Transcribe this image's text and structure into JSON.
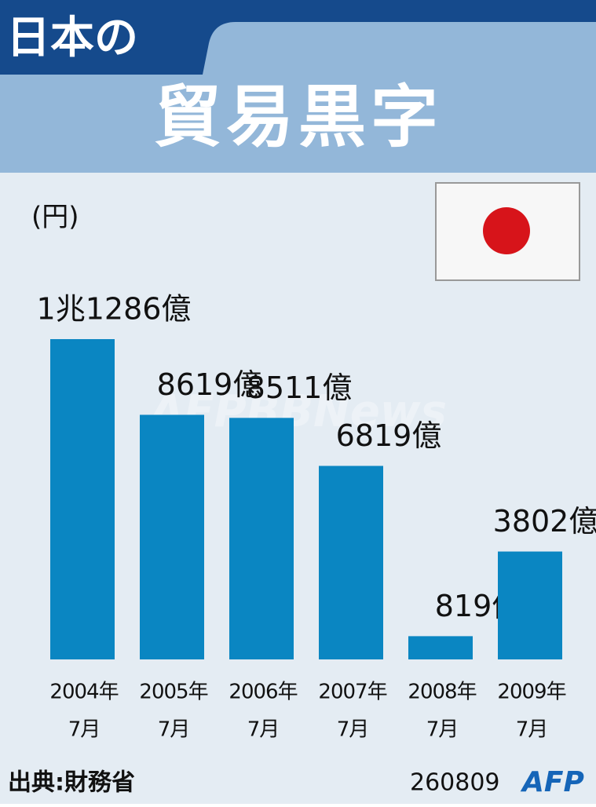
{
  "header": {
    "title": "日本の",
    "subtitle": "貿易黒字"
  },
  "chart_data": {
    "type": "bar",
    "unit_label": "(円)",
    "categories": [
      [
        "2004年",
        "7月"
      ],
      [
        "2005年",
        "7月"
      ],
      [
        "2006年",
        "7月"
      ],
      [
        "2007年",
        "7月"
      ],
      [
        "2008年",
        "7月"
      ],
      [
        "2009年",
        "7月"
      ]
    ],
    "values": [
      11286,
      8619,
      8511,
      6819,
      819,
      3802
    ],
    "value_labels": [
      "1兆1286億",
      "8619億",
      "8511億",
      "6819億",
      "819億",
      "3802億"
    ],
    "color": "#0a86c2"
  },
  "footer": {
    "source": "出典:財務省",
    "code": "260809",
    "logo": "AFP"
  },
  "watermark": "AFPBBNews"
}
